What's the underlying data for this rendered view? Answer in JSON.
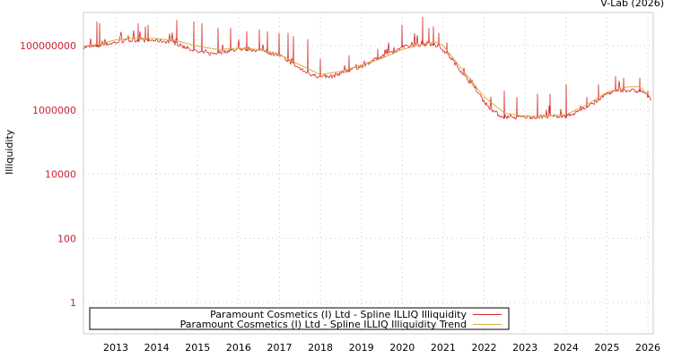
{
  "header": {
    "credit": "V-Lab (2026)"
  },
  "chart_data": {
    "type": "line",
    "title": "",
    "xlabel": "",
    "ylabel": "Illiquidity",
    "yscale": "log",
    "ylim": [
      0.15,
      900000000
    ],
    "xlim": [
      2012.2,
      2026.1
    ],
    "y_ticks": [
      "1",
      "100",
      "10000",
      "1000000",
      "100000000"
    ],
    "y_tick_values": [
      1,
      100,
      10000,
      1000000,
      100000000
    ],
    "x_ticks": [
      "2013",
      "2014",
      "2015",
      "2016",
      "2017",
      "2018",
      "2019",
      "2020",
      "2021",
      "2022",
      "2023",
      "2024",
      "2025",
      "2026"
    ],
    "grid": true,
    "legend_position": "lower left",
    "legend": [
      "Paramount Cosmetics (I) Ltd - Spline ILLIQ Illiquidity",
      "Paramount Cosmetics (I) Ltd - Spline ILLIQ Illiquidity Trend"
    ],
    "colors": {
      "series": "#d62728",
      "trend": "#d4b040",
      "tick_label": "#cc2233",
      "grid": "#c8c8c8"
    },
    "series": [
      {
        "name": "Paramount Cosmetics (I) Ltd - Spline ILLIQ Illiquidity",
        "x": [
          2012.2,
          2012.5,
          2012.8,
          2013.0,
          2013.3,
          2013.6,
          2014.0,
          2014.3,
          2014.6,
          2015.0,
          2015.3,
          2015.6,
          2016.0,
          2016.3,
          2016.6,
          2017.0,
          2017.3,
          2017.6,
          2018.0,
          2018.3,
          2018.6,
          2019.0,
          2019.3,
          2019.6,
          2020.0,
          2020.3,
          2020.6,
          2020.9,
          2021.2,
          2021.5,
          2021.8,
          2022.1,
          2022.4,
          2022.7,
          2023.0,
          2023.3,
          2023.6,
          2024.0,
          2024.3,
          2024.6,
          2025.0,
          2025.3,
          2025.6,
          2025.9,
          2026.1
        ],
        "log10_values": [
          7.95,
          7.97,
          8.05,
          8.1,
          8.15,
          8.17,
          8.16,
          8.12,
          8.0,
          7.8,
          7.75,
          7.8,
          7.9,
          7.88,
          7.82,
          7.7,
          7.45,
          7.2,
          7.0,
          7.05,
          7.2,
          7.35,
          7.55,
          7.7,
          7.95,
          8.0,
          8.05,
          8.0,
          7.6,
          7.1,
          6.6,
          6.1,
          5.8,
          5.75,
          5.78,
          5.78,
          5.8,
          5.8,
          5.95,
          6.15,
          6.5,
          6.62,
          6.6,
          6.55,
          6.3
        ],
        "spikes": [
          {
            "x": 2012.55,
            "log10": 8.75
          },
          {
            "x": 2012.6,
            "log10": 8.7
          },
          {
            "x": 2013.55,
            "log10": 8.7
          },
          {
            "x": 2013.72,
            "log10": 8.6
          },
          {
            "x": 2013.78,
            "log10": 8.65
          },
          {
            "x": 2014.5,
            "log10": 8.8
          },
          {
            "x": 2014.9,
            "log10": 8.75
          },
          {
            "x": 2015.1,
            "log10": 8.7
          },
          {
            "x": 2015.5,
            "log10": 8.55
          },
          {
            "x": 2015.8,
            "log10": 8.55
          },
          {
            "x": 2016.2,
            "log10": 8.45
          },
          {
            "x": 2016.5,
            "log10": 8.5
          },
          {
            "x": 2016.7,
            "log10": 8.45
          },
          {
            "x": 2017.0,
            "log10": 8.4
          },
          {
            "x": 2017.2,
            "log10": 8.4
          },
          {
            "x": 2017.35,
            "log10": 8.3
          },
          {
            "x": 2017.7,
            "log10": 8.2
          },
          {
            "x": 2018.0,
            "log10": 7.6
          },
          {
            "x": 2018.7,
            "log10": 7.7
          },
          {
            "x": 2019.4,
            "log10": 7.9
          },
          {
            "x": 2020.0,
            "log10": 8.65
          },
          {
            "x": 2020.5,
            "log10": 8.9
          },
          {
            "x": 2020.65,
            "log10": 8.55
          },
          {
            "x": 2020.75,
            "log10": 8.6
          },
          {
            "x": 2020.9,
            "log10": 8.4
          },
          {
            "x": 2021.1,
            "log10": 8.1
          },
          {
            "x": 2022.5,
            "log10": 6.6
          },
          {
            "x": 2022.8,
            "log10": 6.4
          },
          {
            "x": 2023.3,
            "log10": 6.5
          },
          {
            "x": 2023.6,
            "log10": 6.5
          },
          {
            "x": 2024.0,
            "log10": 6.8
          },
          {
            "x": 2024.5,
            "log10": 6.4
          },
          {
            "x": 2024.8,
            "log10": 6.8
          },
          {
            "x": 2025.2,
            "log10": 7.05
          },
          {
            "x": 2025.4,
            "log10": 7.0
          },
          {
            "x": 2025.8,
            "log10": 7.0
          },
          {
            "x": 2026.0,
            "log10": 6.6
          }
        ]
      },
      {
        "name": "Paramount Cosmetics (I) Ltd - Spline ILLIQ Illiquidity Trend",
        "x": [
          2012.2,
          2012.6,
          2013.0,
          2013.5,
          2014.0,
          2014.5,
          2015.0,
          2015.5,
          2016.0,
          2016.5,
          2017.0,
          2017.5,
          2018.0,
          2018.5,
          2019.0,
          2019.5,
          2020.0,
          2020.5,
          2020.8,
          2021.0,
          2021.5,
          2022.0,
          2022.5,
          2023.0,
          2023.5,
          2024.0,
          2024.5,
          2025.0,
          2025.5,
          2025.8,
          2026.1
        ],
        "log10_values": [
          7.98,
          8.05,
          8.18,
          8.24,
          8.22,
          8.15,
          7.98,
          7.88,
          7.92,
          7.88,
          7.72,
          7.4,
          7.1,
          7.2,
          7.4,
          7.6,
          7.88,
          8.05,
          8.12,
          8.0,
          7.2,
          6.4,
          5.9,
          5.8,
          5.8,
          5.85,
          6.15,
          6.55,
          6.72,
          6.72,
          6.35
        ]
      }
    ]
  }
}
